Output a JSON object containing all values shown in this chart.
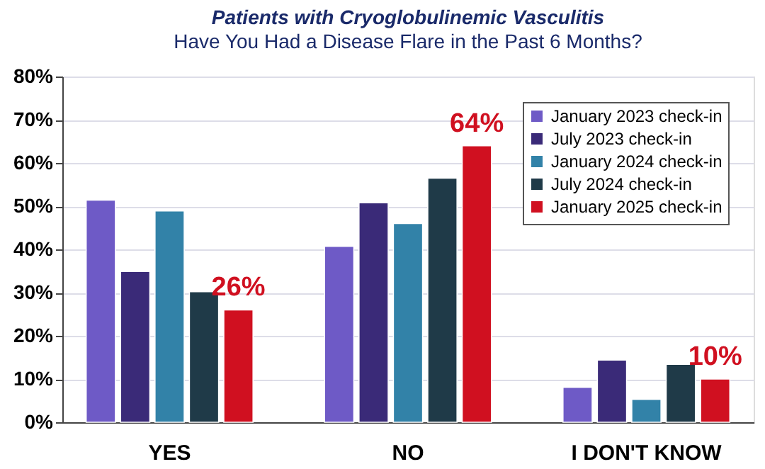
{
  "chart_data": {
    "type": "bar",
    "title": "Patients with Cryoglobulinemic Vasculitis",
    "subtitle": "Have You Had a Disease Flare in the Past 6 Months?",
    "categories": [
      "YES",
      "NO",
      "I DON'T KNOW"
    ],
    "series": [
      {
        "name": "January 2023 check-in",
        "color": "#6e5ac6",
        "values": [
          51.4,
          40.7,
          8.1
        ]
      },
      {
        "name": "July 2023 check-in",
        "color": "#3a2a78",
        "values": [
          34.9,
          50.8,
          14.4
        ]
      },
      {
        "name": "January 2024 check-in",
        "color": "#3282a8",
        "values": [
          48.9,
          46.0,
          5.3
        ]
      },
      {
        "name": "July 2024 check-in",
        "color": "#1f3a48",
        "values": [
          30.2,
          56.5,
          13.4
        ]
      },
      {
        "name": "January 2025 check-in",
        "color": "#d01020",
        "values": [
          26,
          64,
          10
        ],
        "value_labels": [
          "26%",
          "64%",
          "10%"
        ]
      }
    ],
    "ylim": [
      0,
      80
    ],
    "yticks": [
      {
        "value": 0,
        "label": "0%"
      },
      {
        "value": 10,
        "label": "10%"
      },
      {
        "value": 20,
        "label": "20%"
      },
      {
        "value": 30,
        "label": "30%"
      },
      {
        "value": 40,
        "label": "40%"
      },
      {
        "value": 50,
        "label": "50%"
      },
      {
        "value": 60,
        "label": "60%"
      },
      {
        "value": 70,
        "label": "70%"
      },
      {
        "value": 80,
        "label": "80%"
      }
    ],
    "grid": "y",
    "legend": "top right"
  }
}
